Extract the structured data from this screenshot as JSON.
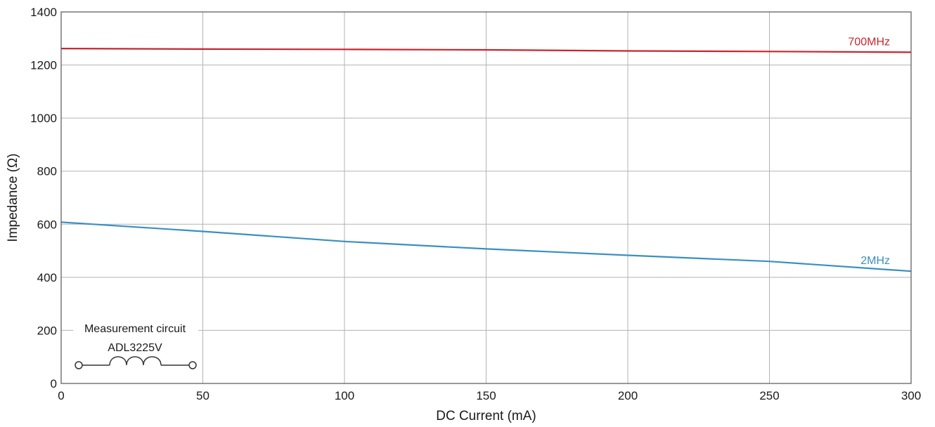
{
  "chart_data": {
    "type": "line",
    "title": "",
    "xlabel": "DC Current (mA)",
    "ylabel": "Impedance (Ω)",
    "xlim": [
      0,
      300
    ],
    "ylim": [
      0,
      1400
    ],
    "xticks": [
      0,
      50,
      100,
      150,
      200,
      250,
      300
    ],
    "yticks": [
      0,
      200,
      400,
      600,
      800,
      1000,
      1200,
      1400
    ],
    "grid": true,
    "series": [
      {
        "name": "700MHz",
        "color": "#c8252d",
        "x": [
          0,
          50,
          100,
          150,
          200,
          250,
          300
        ],
        "y": [
          1262,
          1260,
          1259,
          1257,
          1253,
          1251,
          1248
        ]
      },
      {
        "name": "2MHz",
        "color": "#3a8fc0",
        "x": [
          0,
          50,
          100,
          150,
          200,
          250,
          300
        ],
        "y": [
          608,
          573,
          535,
          507,
          483,
          460,
          423
        ]
      }
    ],
    "annotations": {
      "inset_title": "Measurement circuit",
      "component": "ADL3225V",
      "icon": "inductor-symbol-icon"
    }
  }
}
